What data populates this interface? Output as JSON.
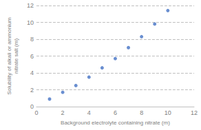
{
  "chart_data": {
    "type": "scatter",
    "x": [
      1,
      2,
      3,
      4,
      5,
      6,
      7,
      8,
      9,
      10
    ],
    "values": [
      0.9,
      1.7,
      2.5,
      3.5,
      4.6,
      5.7,
      7.0,
      8.3,
      9.8,
      11.4
    ],
    "color": "#4472C4",
    "xlabel": "Background electrolyte containing nitrate (m)",
    "ylabel": "Solubility of alkali or ammonium\nnitrate salt (m)",
    "xlim": [
      0,
      12
    ],
    "ylim": [
      0,
      12
    ],
    "xticks": [
      0,
      2,
      4,
      6,
      8,
      10,
      12
    ],
    "yticks": [
      0,
      2,
      4,
      6,
      8,
      10,
      12
    ],
    "grid": "y"
  }
}
